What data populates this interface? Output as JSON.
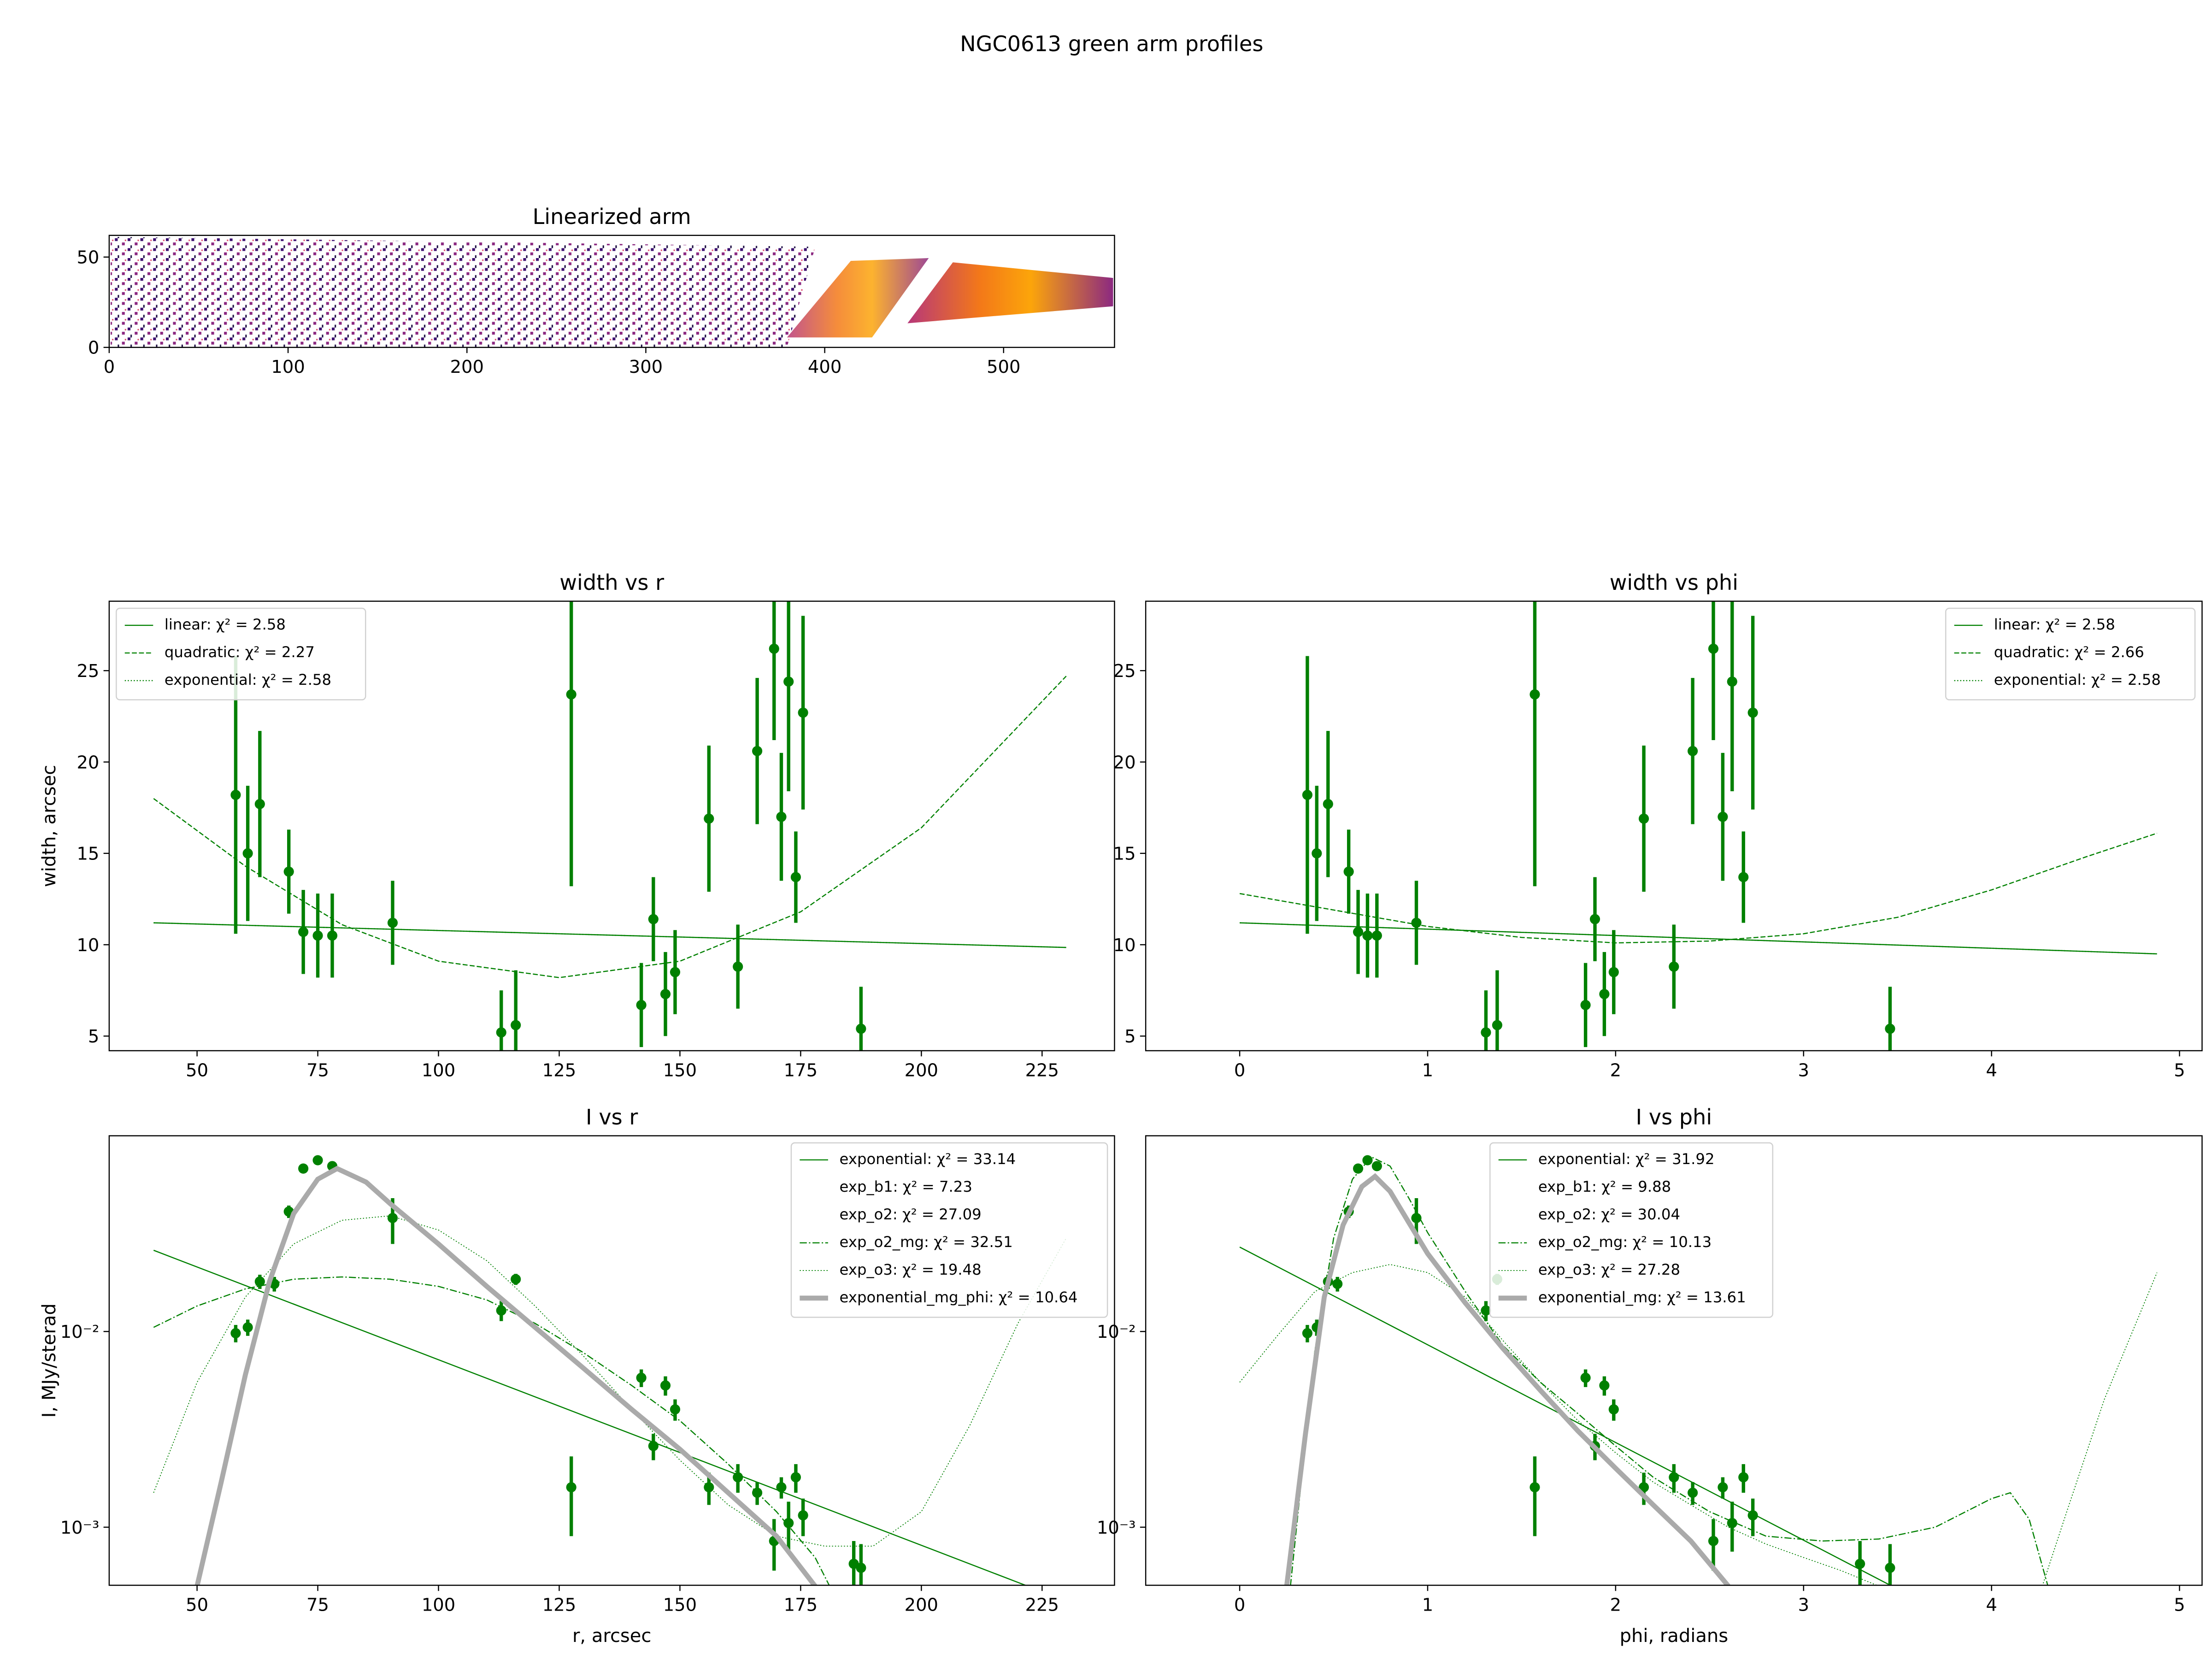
{
  "title": "NGC0613 green arm profiles",
  "chart_data": [
    {
      "type": "image",
      "title": "Linearized arm",
      "xlim": [
        0,
        562
      ],
      "ylim": [
        0,
        62
      ],
      "xticks": [
        0,
        100,
        200,
        300,
        400,
        500
      ],
      "yticks": [
        0,
        50
      ]
    },
    {
      "type": "errorbar",
      "title": "width vs r",
      "ylabel": "width, arcsec",
      "xlim": [
        31.8,
        240
      ],
      "ylim": [
        4.2,
        28.8
      ],
      "xticks": [
        50,
        75,
        100,
        125,
        150,
        175,
        200,
        225
      ],
      "yticks": [
        5,
        10,
        15,
        20,
        25
      ],
      "legend": "upper left",
      "points": {
        "color": "#008000",
        "x": [
          58,
          60.5,
          63,
          69,
          72,
          75,
          78,
          90.5,
          113,
          116,
          127.5,
          142,
          144.5,
          147,
          149,
          156,
          162,
          166,
          169.5,
          171,
          172.5,
          174,
          175.5,
          187.5
        ],
        "values": [
          18.2,
          15,
          17.7,
          14,
          10.7,
          10.5,
          10.5,
          11.2,
          5.2,
          5.6,
          23.7,
          6.7,
          11.4,
          7.3,
          8.5,
          16.9,
          8.8,
          20.6,
          26.2,
          17,
          24.4,
          13.7,
          22.7,
          5.4
        ],
        "errors": [
          7.6,
          3.7,
          4,
          2.3,
          2.3,
          2.3,
          2.3,
          2.3,
          2.3,
          3,
          10.5,
          2.3,
          2.3,
          2.3,
          2.3,
          4,
          2.3,
          4,
          5,
          3.5,
          6,
          2.5,
          5.3,
          2.3
        ]
      },
      "series": [
        {
          "name": "linear: χ² = 2.58",
          "color": "#008000",
          "linestyle": "solid",
          "linewidth": 0.8,
          "x": [
            41,
            230
          ],
          "values": [
            11.2,
            9.85
          ]
        },
        {
          "name": "quadratic: χ² = 2.27",
          "color": "#008000",
          "linestyle": "dashed",
          "linewidth": 0.8,
          "x": [
            41,
            60,
            80,
            100,
            125,
            150,
            175,
            200,
            230
          ],
          "values": [
            18,
            14.3,
            11.1,
            9.1,
            8.2,
            9.1,
            11.8,
            16.4,
            24.7
          ]
        },
        {
          "name": "exponential: χ² = 2.58",
          "color": "#008000",
          "linestyle": "dotted",
          "linewidth": 0.8,
          "x": [
            41,
            230
          ],
          "values": [
            11.2,
            9.85
          ]
        }
      ]
    },
    {
      "type": "errorbar",
      "title": "width vs phi",
      "xlim": [
        -0.5,
        5.12
      ],
      "ylim": [
        4.2,
        28.8
      ],
      "xticks": [
        0,
        1,
        2,
        3,
        4,
        5
      ],
      "yticks": [
        5,
        10,
        15,
        20,
        25
      ],
      "legend": "upper right",
      "points": {
        "color": "#008000",
        "x": [
          0.36,
          0.41,
          0.47,
          0.58,
          0.63,
          0.68,
          0.73,
          0.94,
          1.31,
          1.37,
          1.57,
          1.84,
          1.89,
          1.94,
          1.99,
          2.15,
          2.31,
          2.41,
          2.52,
          2.57,
          2.62,
          2.68,
          2.73,
          3.46
        ],
        "values": [
          18.2,
          15,
          17.7,
          14,
          10.7,
          10.5,
          10.5,
          11.2,
          5.2,
          5.6,
          23.7,
          6.7,
          11.4,
          7.3,
          8.5,
          16.9,
          8.8,
          20.6,
          26.2,
          17,
          24.4,
          13.7,
          22.7,
          5.4
        ],
        "errors": [
          7.6,
          3.7,
          4,
          2.3,
          2.3,
          2.3,
          2.3,
          2.3,
          2.3,
          3,
          10.5,
          2.3,
          2.3,
          2.3,
          2.3,
          4,
          2.3,
          4,
          5,
          3.5,
          6,
          2.5,
          5.3,
          2.3
        ]
      },
      "series": [
        {
          "name": "linear: χ² = 2.58",
          "color": "#008000",
          "linestyle": "solid",
          "linewidth": 0.8,
          "x": [
            0,
            4.88
          ],
          "values": [
            11.2,
            9.5
          ]
        },
        {
          "name": "quadratic: χ² = 2.66",
          "color": "#008000",
          "linestyle": "dashed",
          "linewidth": 0.8,
          "x": [
            0,
            0.5,
            1,
            1.5,
            2,
            2.5,
            3,
            3.5,
            4,
            4.5,
            4.88
          ],
          "values": [
            12.8,
            11.9,
            11,
            10.4,
            10.1,
            10.2,
            10.6,
            11.5,
            13,
            14.8,
            16.1
          ]
        },
        {
          "name": "exponential: χ² = 2.58",
          "color": "#008000",
          "linestyle": "dotted",
          "linewidth": 0.8,
          "x": [
            0,
            4.88
          ],
          "values": [
            11.2,
            9.5
          ]
        }
      ]
    },
    {
      "type": "errorbar",
      "title": "I vs r",
      "xlabel": "r, arcsec",
      "ylabel": "I, MJy/sterad",
      "log_y": true,
      "xlim": [
        31.8,
        240
      ],
      "ylim": [
        0.000505,
        0.1
      ],
      "xticks": [
        50,
        75,
        100,
        125,
        150,
        175,
        200,
        225
      ],
      "yticks": [
        {
          "value": 0.001,
          "label": "10⁻³"
        },
        {
          "value": 0.01,
          "label": "10⁻²"
        }
      ],
      "legend": "upper right",
      "points": {
        "color": "#008000",
        "x": [
          58,
          60.5,
          63,
          66,
          69,
          72,
          75,
          78,
          90.5,
          113,
          116,
          127.5,
          142,
          144.5,
          147,
          149,
          156,
          162,
          166,
          169.5,
          171,
          172.5,
          174,
          175.5,
          186,
          187.5
        ],
        "values": [
          0.0098,
          0.0105,
          0.018,
          0.0175,
          0.041,
          0.068,
          0.075,
          0.07,
          0.038,
          0.0128,
          0.0185,
          0.0016,
          0.0058,
          0.0026,
          0.0053,
          0.004,
          0.0016,
          0.0018,
          0.0015,
          0.00085,
          0.0016,
          0.00105,
          0.0018,
          0.00115,
          0.00065,
          0.00062
        ],
        "errors": [
          0.001,
          0.001,
          0.0015,
          0.0015,
          0.003,
          0.003,
          0.003,
          0.003,
          0.01,
          0.0015,
          0.0012,
          0.0007,
          0.0006,
          0.0004,
          0.0006,
          0.0005,
          0.0003,
          0.0003,
          0.0002,
          0.00025,
          0.0002,
          0.0003,
          0.0003,
          0.00025,
          0.0002,
          0.0002
        ]
      },
      "series": [
        {
          "name": "exponential: χ² = 33.14",
          "color": "#008000",
          "linestyle": "solid",
          "linewidth": 0.8,
          "x": [
            41,
            222
          ],
          "values": [
            0.026,
            0.0005
          ]
        },
        {
          "name": "exp_b1: χ² = 7.23"
        },
        {
          "name": "exp_o2: χ² = 27.09"
        },
        {
          "name": "exp_o2_mg: χ² = 32.51",
          "color": "#008000",
          "linestyle": "dashdot",
          "linewidth": 0.8,
          "x": [
            41,
            50,
            60,
            70,
            80,
            90,
            100,
            110,
            120,
            130,
            140,
            150,
            160,
            170,
            178,
            181
          ],
          "values": [
            0.0105,
            0.0135,
            0.0165,
            0.0185,
            0.019,
            0.0185,
            0.017,
            0.0145,
            0.011,
            0.0078,
            0.0053,
            0.0035,
            0.0021,
            0.0012,
            0.0007,
            0.0005
          ]
        },
        {
          "name": "exp_o3: χ² = 19.48",
          "color": "#008000",
          "linestyle": "dotted",
          "linewidth": 0.6,
          "x": [
            41,
            50,
            60,
            70,
            80,
            90,
            100,
            110,
            120,
            130,
            140,
            150,
            160,
            170,
            180,
            190,
            200,
            210,
            220,
            230
          ],
          "values": [
            0.0015,
            0.0055,
            0.015,
            0.028,
            0.037,
            0.039,
            0.033,
            0.023,
            0.0135,
            0.0075,
            0.004,
            0.0022,
            0.0013,
            0.0009,
            0.0008,
            0.0008,
            0.0012,
            0.0033,
            0.011,
            0.03
          ]
        },
        {
          "name": "exponential_mg_phi: χ² = 10.64",
          "color": "#aaaaaa",
          "linestyle": "solid",
          "linewidth": 3.5,
          "x": [
            50,
            55,
            60,
            65,
            70,
            75,
            79,
            85,
            90,
            100,
            110,
            120,
            130,
            140,
            150,
            160,
            170,
            178
          ],
          "values": [
            0.0005,
            0.0017,
            0.006,
            0.018,
            0.04,
            0.06,
            0.068,
            0.058,
            0.045,
            0.028,
            0.017,
            0.0105,
            0.0065,
            0.004,
            0.0025,
            0.0015,
            0.0009,
            0.0005
          ]
        }
      ]
    },
    {
      "type": "errorbar",
      "title": "I vs phi",
      "xlabel": "phi, radians",
      "log_y": true,
      "xlim": [
        -0.5,
        5.12
      ],
      "ylim": [
        0.000505,
        0.1
      ],
      "xticks": [
        0,
        1,
        2,
        3,
        4,
        5
      ],
      "yticks": [
        {
          "value": 0.001,
          "label": "10⁻³"
        },
        {
          "value": 0.01,
          "label": "10⁻²"
        }
      ],
      "legend": "upper center",
      "points": {
        "color": "#008000",
        "x": [
          0.36,
          0.41,
          0.47,
          0.52,
          0.58,
          0.63,
          0.68,
          0.73,
          0.94,
          1.31,
          1.37,
          1.57,
          1.84,
          1.89,
          1.94,
          1.99,
          2.15,
          2.31,
          2.41,
          2.52,
          2.57,
          2.62,
          2.68,
          2.73,
          3.3,
          3.46
        ],
        "values": [
          0.0098,
          0.0105,
          0.018,
          0.0175,
          0.041,
          0.068,
          0.075,
          0.07,
          0.038,
          0.0128,
          0.0185,
          0.0016,
          0.0058,
          0.0026,
          0.0053,
          0.004,
          0.0016,
          0.0018,
          0.0015,
          0.00085,
          0.0016,
          0.00105,
          0.0018,
          0.00115,
          0.00065,
          0.00062
        ],
        "errors": [
          0.001,
          0.001,
          0.0015,
          0.0015,
          0.003,
          0.003,
          0.003,
          0.003,
          0.01,
          0.0015,
          0.0012,
          0.0007,
          0.0006,
          0.0004,
          0.0006,
          0.0005,
          0.0003,
          0.0003,
          0.0002,
          0.00025,
          0.0002,
          0.0003,
          0.0003,
          0.00025,
          0.0002,
          0.0002
        ]
      },
      "series": [
        {
          "name": "exponential: χ² = 31.92",
          "color": "#008000",
          "linestyle": "solid",
          "linewidth": 0.8,
          "x": [
            0,
            3.47
          ],
          "values": [
            0.027,
            0.0005
          ]
        },
        {
          "name": "exp_b1: χ² = 9.88"
        },
        {
          "name": "exp_o2: χ² = 30.04"
        },
        {
          "name": "exp_o2_mg: χ² = 10.13",
          "color": "#008000",
          "linestyle": "dashdot",
          "linewidth": 0.8,
          "x": [
            0.27,
            0.4,
            0.5,
            0.6,
            0.7,
            0.8,
            0.9,
            1,
            1.2,
            1.4,
            1.6,
            1.8,
            2,
            2.2,
            2.5,
            2.8,
            3.1,
            3.4,
            3.7,
            4,
            4.1,
            4.2,
            4.3
          ],
          "values": [
            0.0005,
            0.008,
            0.03,
            0.06,
            0.078,
            0.07,
            0.048,
            0.032,
            0.016,
            0.0085,
            0.0055,
            0.0038,
            0.0026,
            0.0018,
            0.0012,
            0.0009,
            0.00085,
            0.00087,
            0.001,
            0.0014,
            0.0015,
            0.0011,
            0.0005
          ]
        },
        {
          "name": "exp_o3: χ² = 27.28",
          "color": "#008000",
          "linestyle": "dotted",
          "linewidth": 0.6,
          "x": [
            0,
            0.2,
            0.4,
            0.6,
            0.8,
            1,
            1.2,
            1.4,
            1.6,
            1.8,
            2,
            2.2,
            2.4,
            2.6,
            2.8,
            3,
            3.2,
            3.4,
            3.8,
            4.27,
            4.4,
            4.6,
            4.88
          ],
          "values": [
            0.0055,
            0.0095,
            0.016,
            0.02,
            0.022,
            0.02,
            0.015,
            0.009,
            0.0055,
            0.0035,
            0.0024,
            0.0017,
            0.0013,
            0.001,
            0.00082,
            0.0007,
            0.0006,
            0.0005,
            null,
            0.0005,
            0.0012,
            0.0045,
            0.02
          ]
        },
        {
          "name": "exponential_mg: χ² = 13.61",
          "color": "#aaaaaa",
          "linestyle": "solid",
          "linewidth": 3.5,
          "x": [
            0.25,
            0.35,
            0.45,
            0.55,
            0.65,
            0.72,
            0.8,
            0.9,
            1,
            1.2,
            1.4,
            1.6,
            1.8,
            2,
            2.2,
            2.4,
            2.6
          ],
          "values": [
            0.0005,
            0.003,
            0.015,
            0.035,
            0.055,
            0.062,
            0.052,
            0.036,
            0.025,
            0.014,
            0.0082,
            0.005,
            0.0031,
            0.002,
            0.0013,
            0.00085,
            0.0005
          ]
        }
      ]
    }
  ]
}
